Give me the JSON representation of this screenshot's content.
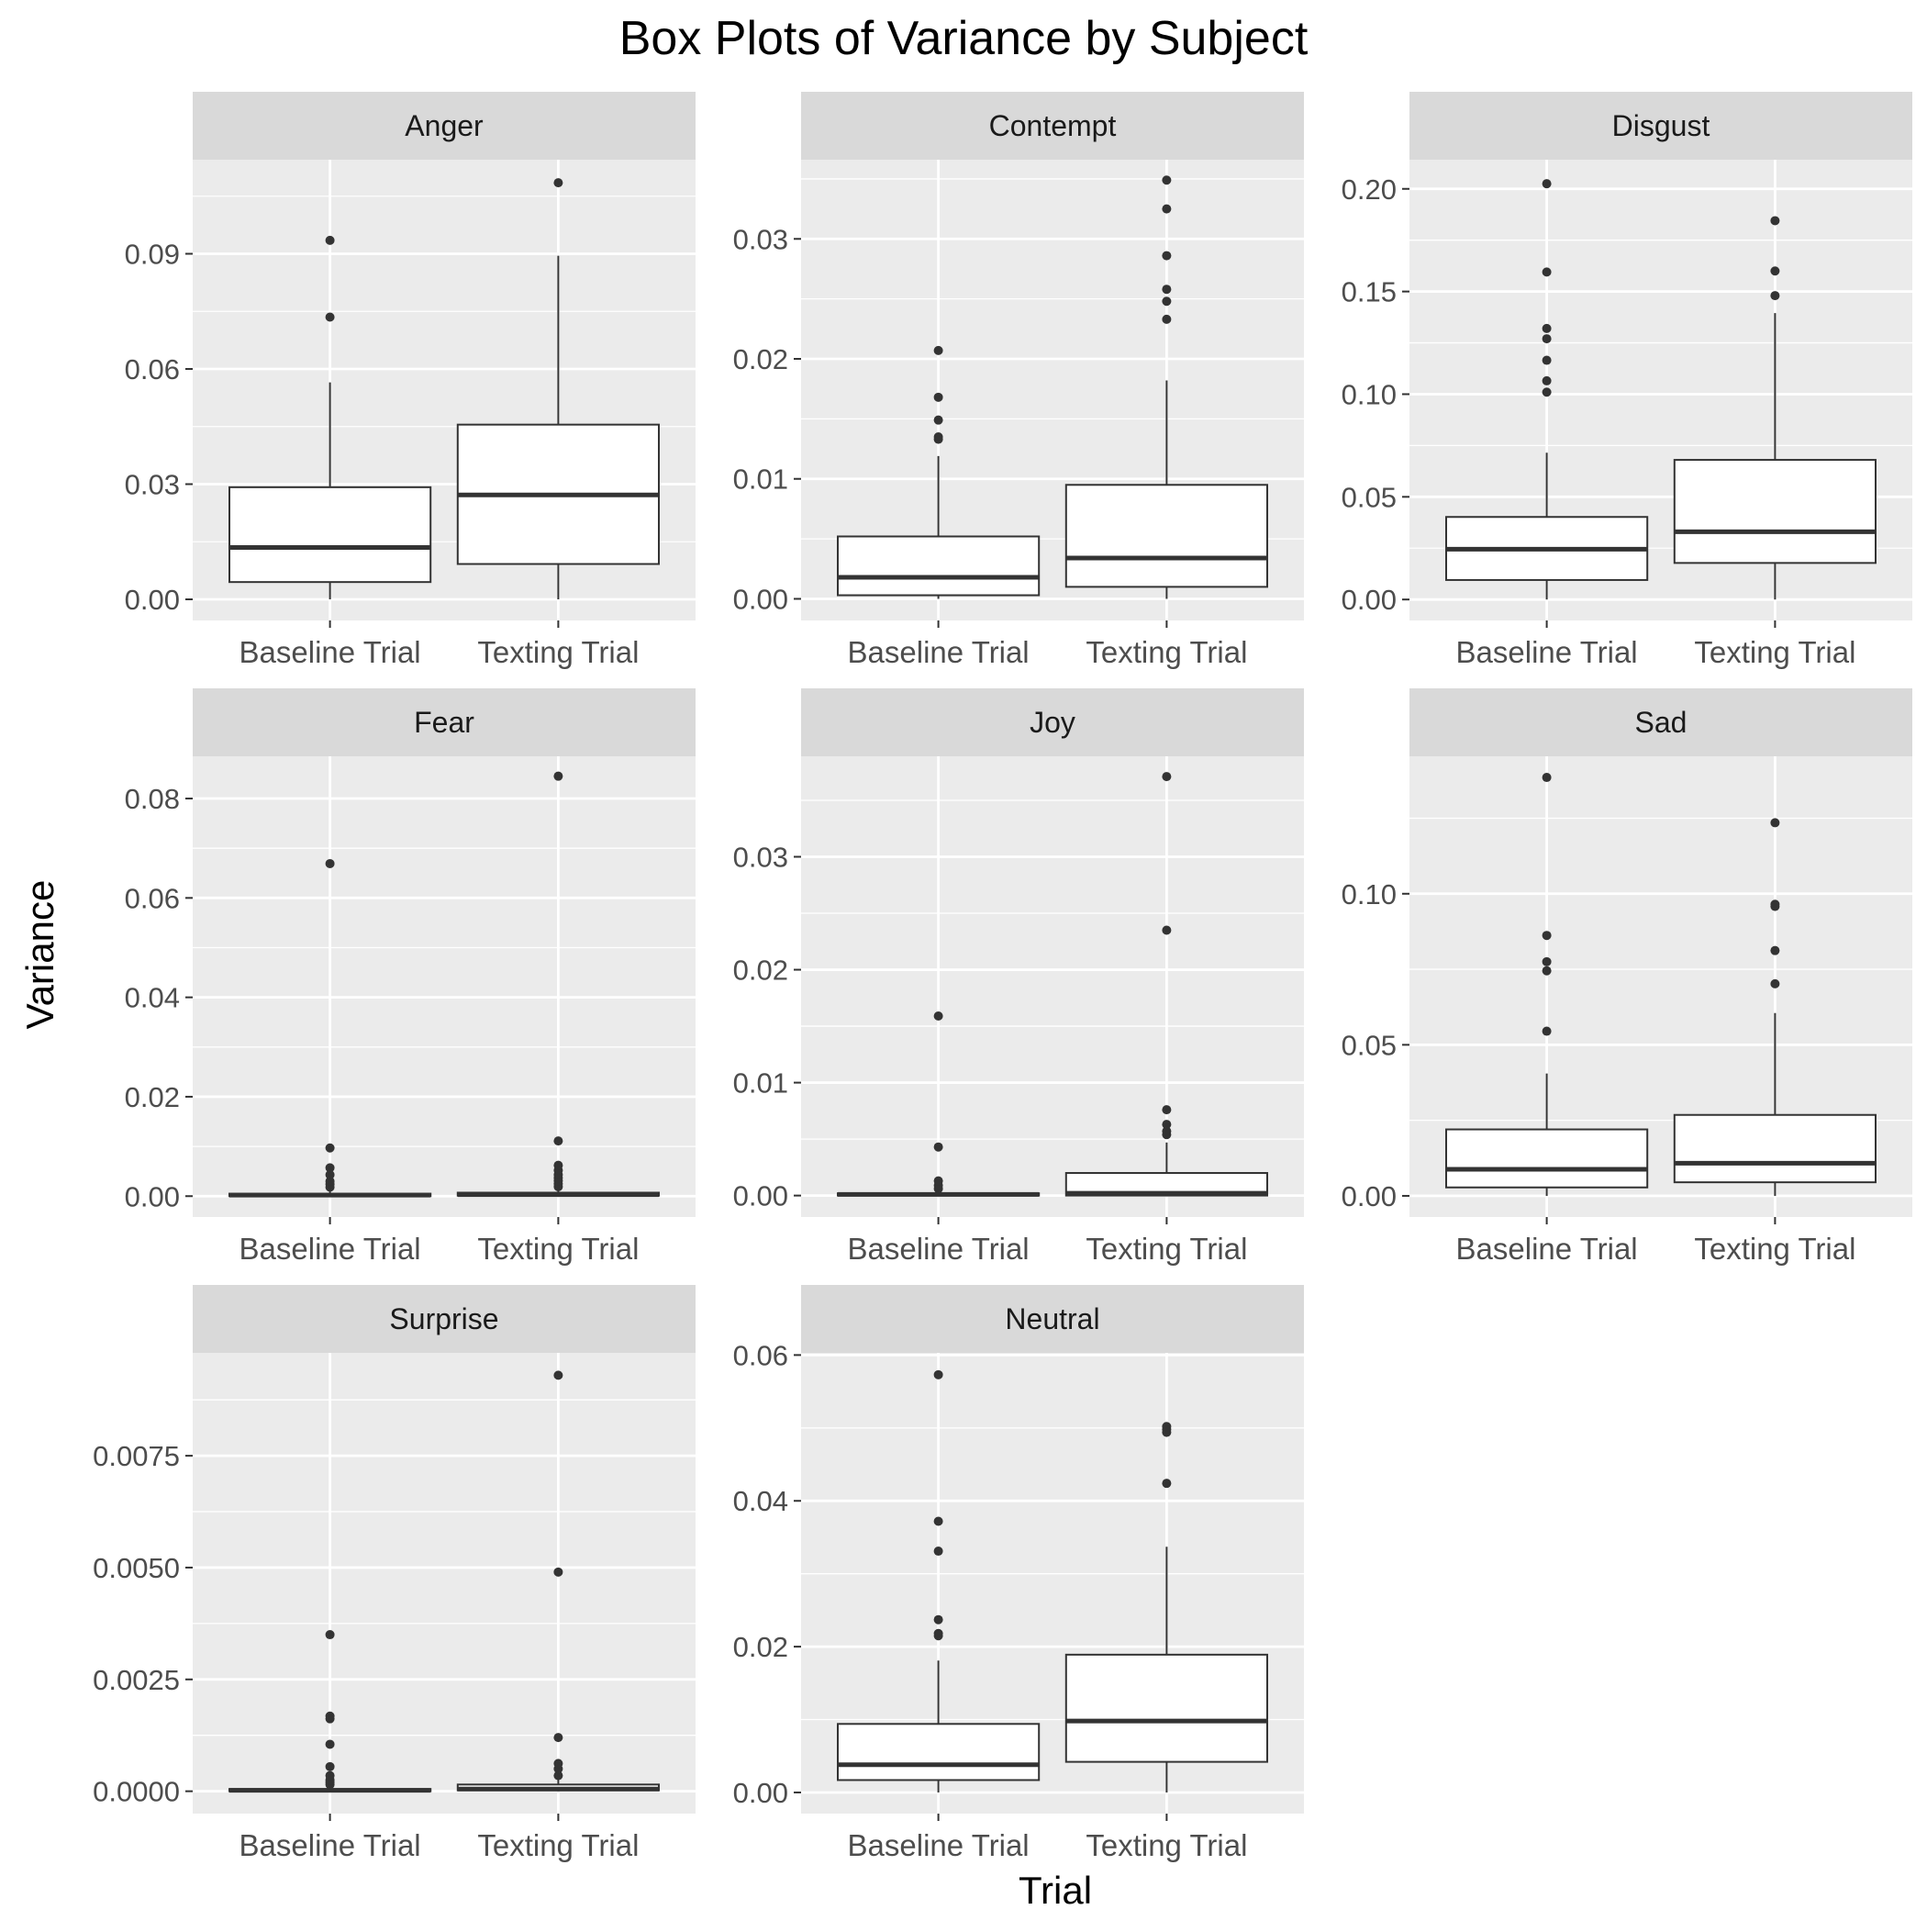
{
  "title": "Box Plots of Variance by Subject",
  "xlabel": "Trial",
  "ylabel": "Variance",
  "colors": {
    "panel": "#ebebeb",
    "strip": "#d9d9d9",
    "grid": "#ffffff",
    "box_line": "#333333",
    "box_fill": "#ffffff",
    "point": "#333333",
    "tick_text": "#4d4d4d"
  },
  "chart_data": [
    {
      "type": "box",
      "facet": "Anger",
      "categories": [
        "Baseline Trial",
        "Texting Trial"
      ],
      "ylim": [
        -0.0055,
        0.1145
      ],
      "yticks": [
        0.0,
        0.03,
        0.06,
        0.09
      ],
      "ytick_labels": [
        "0.00",
        "0.03",
        "0.06",
        "0.09"
      ],
      "boxes": [
        {
          "min": 0.0,
          "q1": 0.0045,
          "median": 0.0135,
          "q3": 0.0292,
          "max": 0.0565,
          "outliers": [
            0.0735,
            0.0935
          ]
        },
        {
          "min": 0.0,
          "q1": 0.0092,
          "median": 0.0272,
          "q3": 0.0455,
          "max": 0.0895,
          "outliers": [
            0.1085
          ]
        }
      ]
    },
    {
      "type": "box",
      "facet": "Contempt",
      "categories": [
        "Baseline Trial",
        "Texting Trial"
      ],
      "ylim": [
        -0.0018,
        0.0366
      ],
      "yticks": [
        0.0,
        0.01,
        0.02,
        0.03
      ],
      "ytick_labels": [
        "0.00",
        "0.01",
        "0.02",
        "0.03"
      ],
      "boxes": [
        {
          "min": 0.0,
          "q1": 0.0003,
          "median": 0.0018,
          "q3": 0.0052,
          "max": 0.0119,
          "outliers": [
            0.0133,
            0.0135,
            0.0149,
            0.0168,
            0.0207
          ]
        },
        {
          "min": 0.0,
          "q1": 0.001,
          "median": 0.0034,
          "q3": 0.0095,
          "max": 0.0182,
          "outliers": [
            0.0233,
            0.0248,
            0.0258,
            0.0286,
            0.0325,
            0.0349
          ]
        }
      ]
    },
    {
      "type": "box",
      "facet": "Disgust",
      "categories": [
        "Baseline Trial",
        "Texting Trial"
      ],
      "ylim": [
        -0.0102,
        0.2142
      ],
      "yticks": [
        0.0,
        0.05,
        0.1,
        0.15,
        0.2
      ],
      "ytick_labels": [
        "0.00",
        "0.05",
        "0.10",
        "0.15",
        "0.20"
      ],
      "boxes": [
        {
          "min": 0.0,
          "q1": 0.0095,
          "median": 0.0245,
          "q3": 0.0402,
          "max": 0.0715,
          "outliers": [
            0.101,
            0.1065,
            0.1165,
            0.127,
            0.132,
            0.1595,
            0.2025
          ]
        },
        {
          "min": 0.0,
          "q1": 0.0178,
          "median": 0.033,
          "q3": 0.068,
          "max": 0.1395,
          "outliers": [
            0.148,
            0.16,
            0.1845
          ]
        }
      ]
    },
    {
      "type": "box",
      "facet": "Fear",
      "categories": [
        "Baseline Trial",
        "Texting Trial"
      ],
      "ylim": [
        -0.0042,
        0.0885
      ],
      "yticks": [
        0.0,
        0.02,
        0.04,
        0.06,
        0.08
      ],
      "ytick_labels": [
        "0.00",
        "0.02",
        "0.04",
        "0.06",
        "0.08"
      ],
      "boxes": [
        {
          "min": 0.0,
          "q1": 0.0,
          "median": 0.0002,
          "q3": 0.0005,
          "max": 0.0012,
          "outliers": [
            0.0018,
            0.0024,
            0.003,
            0.0043,
            0.0057,
            0.0097,
            0.0669
          ]
        },
        {
          "min": 0.0,
          "q1": 0.0001,
          "median": 0.0003,
          "q3": 0.0007,
          "max": 0.0014,
          "outliers": [
            0.0019,
            0.0025,
            0.0031,
            0.0037,
            0.0043,
            0.0052,
            0.0062,
            0.0111,
            0.0845
          ]
        }
      ]
    },
    {
      "type": "box",
      "facet": "Joy",
      "categories": [
        "Baseline Trial",
        "Texting Trial"
      ],
      "ylim": [
        -0.0019,
        0.0389
      ],
      "yticks": [
        0.0,
        0.01,
        0.02,
        0.03
      ],
      "ytick_labels": [
        "0.00",
        "0.01",
        "0.02",
        "0.03"
      ],
      "boxes": [
        {
          "min": 0.0,
          "q1": 0.0,
          "median": 0.0001,
          "q3": 0.0002,
          "max": 0.0004,
          "outliers": [
            0.0006,
            0.0009,
            0.0013,
            0.0043,
            0.0159
          ]
        },
        {
          "min": 0.0,
          "q1": 0.0,
          "median": 0.0002,
          "q3": 0.002,
          "max": 0.0047,
          "outliers": [
            0.0054,
            0.0057,
            0.0063,
            0.0076,
            0.0235,
            0.0371
          ]
        }
      ]
    },
    {
      "type": "box",
      "facet": "Sad",
      "categories": [
        "Baseline Trial",
        "Texting Trial"
      ],
      "ylim": [
        -0.007,
        0.1455
      ],
      "yticks": [
        0.0,
        0.05,
        0.1
      ],
      "ytick_labels": [
        "0.00",
        "0.05",
        "0.10"
      ],
      "boxes": [
        {
          "min": 0.0,
          "q1": 0.0028,
          "median": 0.0088,
          "q3": 0.022,
          "max": 0.0405,
          "outliers": [
            0.0545,
            0.0745,
            0.0775,
            0.0862,
            0.1385
          ]
        },
        {
          "min": 0.0,
          "q1": 0.0045,
          "median": 0.0108,
          "q3": 0.0268,
          "max": 0.0605,
          "outliers": [
            0.0702,
            0.0812,
            0.0958,
            0.0965,
            0.1235
          ]
        }
      ]
    },
    {
      "type": "box",
      "facet": "Surprise",
      "categories": [
        "Baseline Trial",
        "Texting Trial"
      ],
      "ylim": [
        -0.0005,
        0.0098
      ],
      "yticks": [
        0.0,
        0.0025,
        0.005,
        0.0075
      ],
      "ytick_labels": [
        "0.0000",
        "0.0025",
        "0.0050",
        "0.0075"
      ],
      "boxes": [
        {
          "min": 0.0,
          "q1": 0.0,
          "median": 2e-05,
          "q3": 5e-05,
          "max": 0.0001,
          "outliers": [
            0.00015,
            0.0002,
            0.00025,
            0.00035,
            0.00055,
            0.00105,
            0.00162,
            0.00168,
            0.0035
          ]
        },
        {
          "min": 0.0,
          "q1": 2e-05,
          "median": 5e-05,
          "q3": 0.00015,
          "max": 0.00028,
          "outliers": [
            0.00035,
            0.0005,
            0.00062,
            0.0012,
            0.0049,
            0.0093
          ]
        }
      ]
    },
    {
      "type": "box",
      "facet": "Neutral",
      "categories": [
        "Baseline Trial",
        "Texting Trial"
      ],
      "ylim": [
        -0.0029,
        0.0603
      ],
      "yticks": [
        0.0,
        0.02,
        0.04,
        0.06
      ],
      "ytick_labels": [
        "0.00",
        "0.02",
        "0.04",
        "0.06"
      ],
      "boxes": [
        {
          "min": 0.0,
          "q1": 0.0017,
          "median": 0.0038,
          "q3": 0.0094,
          "max": 0.0181,
          "outliers": [
            0.0215,
            0.0218,
            0.0237,
            0.0331,
            0.0372,
            0.0573
          ]
        },
        {
          "min": 0.0,
          "q1": 0.0042,
          "median": 0.0098,
          "q3": 0.0189,
          "max": 0.0337,
          "outliers": [
            0.0424,
            0.0494,
            0.0498,
            0.0502
          ]
        }
      ]
    }
  ]
}
